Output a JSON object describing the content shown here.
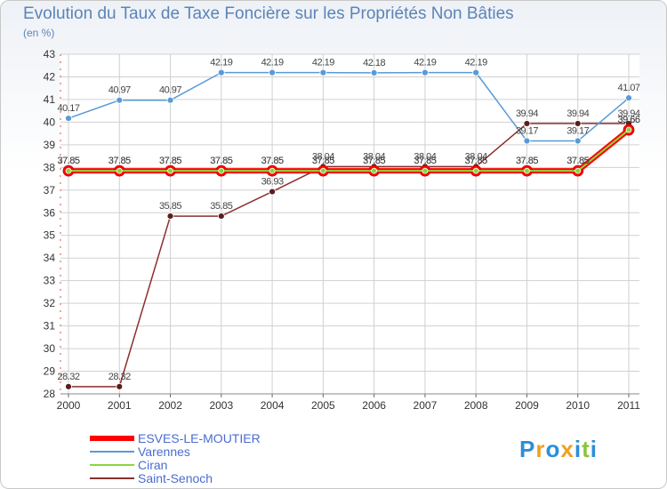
{
  "header": {
    "title": "Evolution du Taux de Taxe Foncière sur les Propriétés Non Bâties",
    "subtitle": "(en %)"
  },
  "chart_data": {
    "type": "line",
    "title": "Evolution du Taux de Taxe Foncière sur les Propriétés Non Bâties",
    "ylabel": "(en %)",
    "xlabel": "",
    "x": [
      "2000",
      "2001",
      "2002",
      "2003",
      "2004",
      "2005",
      "2006",
      "2007",
      "2008",
      "2009",
      "2010",
      "2011"
    ],
    "ylim": [
      28,
      43
    ],
    "yticks": [
      "28",
      "29",
      "30",
      "31",
      "32",
      "33",
      "34",
      "35",
      "36",
      "37",
      "38",
      "39",
      "40",
      "41",
      "42",
      "43"
    ],
    "grid": true,
    "series": [
      {
        "name": "ESVES-LE-MOUTIER",
        "color": "#ff0000",
        "values": [
          37.85,
          37.85,
          37.85,
          37.85,
          37.85,
          37.85,
          37.85,
          37.85,
          37.85,
          37.85,
          37.85,
          39.66
        ],
        "labels": [
          "37.85",
          "37.85",
          "37.85",
          "37.85",
          "37.85",
          "37.85",
          "37.85",
          "37.85",
          "37.85",
          "37.85",
          "37.85",
          "39.66"
        ]
      },
      {
        "name": "Varennes",
        "color": "#5a9ad6",
        "values": [
          40.17,
          40.97,
          40.97,
          42.19,
          42.19,
          42.19,
          42.18,
          42.19,
          42.19,
          39.17,
          39.17,
          41.07
        ],
        "labels": [
          "40.17",
          "40.97",
          "40.97",
          "42.19",
          "42.19",
          "42.19",
          "42.18",
          "42.19",
          "42.19",
          "39.17",
          "39.17",
          "41.07"
        ]
      },
      {
        "name": "Ciran",
        "color": "#8ad63a",
        "values": [
          37.85,
          37.85,
          37.85,
          37.85,
          37.85,
          37.85,
          37.85,
          37.85,
          37.85,
          37.85,
          37.85,
          39.66
        ],
        "labels": [
          "37.85",
          "37.85",
          "37.85",
          "37.85",
          "37.85",
          "37.85",
          "37.85",
          "37.85",
          "37.85",
          "37.85",
          "37.85",
          "39.66"
        ]
      },
      {
        "name": "Saint-Senoch",
        "color": "#8b2e2e",
        "values": [
          28.32,
          28.32,
          35.85,
          35.85,
          36.93,
          38.04,
          38.04,
          38.04,
          38.04,
          39.94,
          39.94,
          39.94
        ],
        "labels": [
          "28.32",
          "28.32",
          "35.85",
          "35.85",
          "36.93",
          "38.04",
          "38.04",
          "38.04",
          "38.04",
          "39.94",
          "39.94",
          "39.94"
        ]
      }
    ]
  },
  "legend": {
    "items": [
      {
        "label": "ESVES-LE-MOUTIER",
        "color": "#ff0000"
      },
      {
        "label": "Varennes",
        "color": "#5a9ad6"
      },
      {
        "label": "Ciran",
        "color": "#8ad63a"
      },
      {
        "label": "Saint-Senoch",
        "color": "#8b2e2e"
      }
    ]
  },
  "logo": {
    "letters": [
      "P",
      "r",
      "o",
      "x",
      "i",
      "t",
      "i"
    ],
    "colors": [
      "#2b8fd8",
      "#f0a020",
      "#2b8fd8",
      "#f0a020",
      "#2b8fd8",
      "#8ac43a",
      "#2b8fd8"
    ]
  }
}
